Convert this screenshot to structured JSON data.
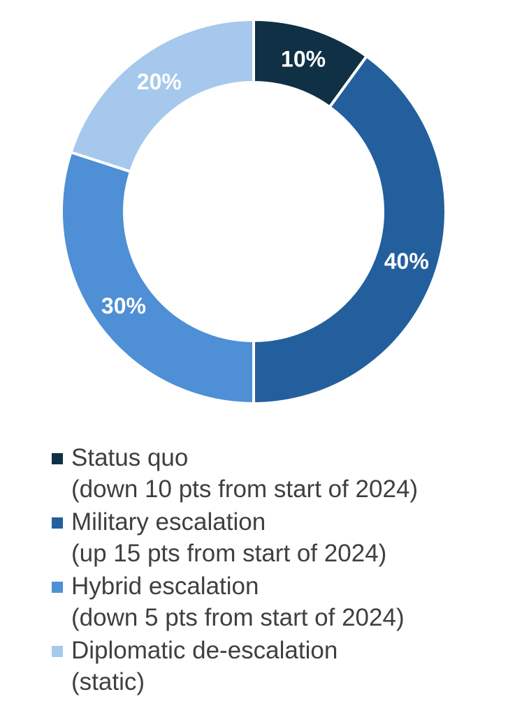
{
  "chart_data": {
    "type": "pie",
    "donut": true,
    "labels": [
      "Status quo",
      "Military escalation",
      "Hybrid escalation",
      "Diplomatic de-escalation"
    ],
    "values": [
      10,
      40,
      30,
      20
    ],
    "value_labels": [
      "10%",
      "40%",
      "30%",
      "20%"
    ],
    "notes": [
      "(down 10 pts from start of 2024)",
      "(up 15 pts from start of 2024)",
      "(down 5 pts from start of 2024)",
      "(static)"
    ],
    "colors": [
      "#0f3045",
      "#245f9d",
      "#4e8fd6",
      "#a6c8ec"
    ],
    "legend_position": "bottom"
  }
}
